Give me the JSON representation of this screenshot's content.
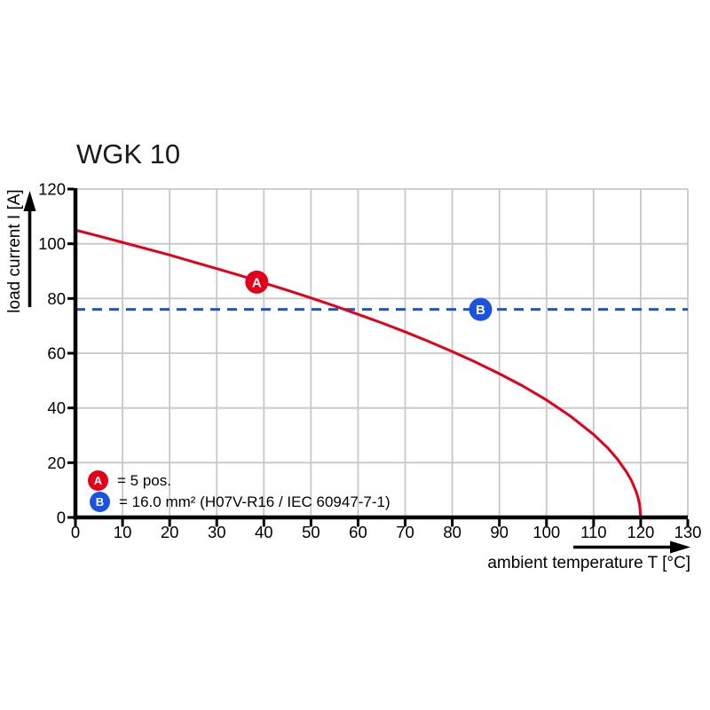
{
  "chart": {
    "title": "WGK 10",
    "y_axis_label": "load current I [A]",
    "x_axis_label": "ambient temperature T [°C]",
    "colors": {
      "curve_red": "#e2001a",
      "limit_blue": "#1b52e0",
      "grid": "#c8c8c8",
      "axis": "#000000"
    },
    "legend": [
      {
        "marker": "A",
        "color": "#e2001a",
        "text": "= 5 pos."
      },
      {
        "marker": "B",
        "color": "#1b52e0",
        "text": "= 16.0 mm² (H07V-R16 / IEC 60947-7-1)"
      }
    ]
  },
  "chart_data": {
    "type": "line",
    "title": "WGK 10",
    "xlabel": "ambient temperature T [°C]",
    "ylabel": "load current I [A]",
    "xlim": [
      0,
      130
    ],
    "ylim": [
      0,
      120
    ],
    "x_ticks": [
      0,
      10,
      20,
      30,
      40,
      50,
      60,
      70,
      80,
      90,
      100,
      110,
      120,
      130
    ],
    "y_ticks": [
      0,
      20,
      40,
      60,
      80,
      100,
      120
    ],
    "grid": true,
    "legend_position": "inside bottom-left",
    "series": [
      {
        "name": "derating curve, 5 pos.",
        "style": "solid",
        "color": "#e2001a",
        "points": [
          [
            0,
            105
          ],
          [
            5,
            102.8
          ],
          [
            10,
            100.5
          ],
          [
            15,
            98.2
          ],
          [
            20,
            95.9
          ],
          [
            25,
            93.4
          ],
          [
            30,
            90.9
          ],
          [
            35,
            88.4
          ],
          [
            40,
            85.7
          ],
          [
            45,
            83.0
          ],
          [
            50,
            80.2
          ],
          [
            55,
            77.3
          ],
          [
            60,
            74.2
          ],
          [
            65,
            71.1
          ],
          [
            70,
            67.8
          ],
          [
            75,
            64.3
          ],
          [
            80,
            60.6
          ],
          [
            85,
            56.7
          ],
          [
            90,
            52.5
          ],
          [
            95,
            48.0
          ],
          [
            100,
            42.9
          ],
          [
            105,
            37.1
          ],
          [
            110,
            30.3
          ],
          [
            113,
            25.4
          ],
          [
            115,
            21.4
          ],
          [
            117,
            16.6
          ],
          [
            118,
            13.6
          ],
          [
            119,
            9.6
          ],
          [
            119.5,
            6.8
          ],
          [
            119.8,
            4.3
          ],
          [
            120,
            0
          ]
        ]
      },
      {
        "name": "16.0 mm² conductor limit",
        "style": "dashed",
        "color": "#1b52e0",
        "points": [
          [
            0,
            76
          ],
          [
            130,
            76
          ]
        ]
      }
    ],
    "markers": [
      {
        "label": "A",
        "x": 38.5,
        "y": 86,
        "color": "#e2001a"
      },
      {
        "label": "B",
        "x": 86,
        "y": 76,
        "color": "#1b52e0"
      }
    ]
  }
}
